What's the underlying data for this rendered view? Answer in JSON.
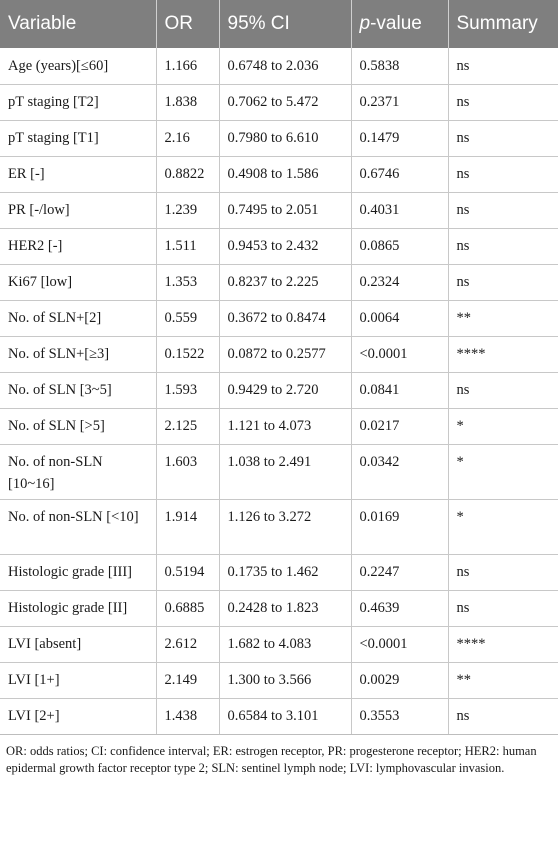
{
  "table": {
    "headers": {
      "variable": "Variable",
      "or": "OR",
      "ci": "95% CI",
      "p_prefix": "p",
      "p_suffix": "-value",
      "summary": "Summary"
    },
    "rows": [
      {
        "variable": "Age (years)[≤60]",
        "or": "1.166",
        "ci": "0.6748 to 2.036",
        "p": "0.5838",
        "summary": "ns"
      },
      {
        "variable": "pT staging [T2]",
        "or": "1.838",
        "ci": "0.7062 to 5.472",
        "p": "0.2371",
        "summary": "ns"
      },
      {
        "variable": "pT staging [T1]",
        "or": "2.16",
        "ci": "0.7980 to 6.610",
        "p": "0.1479",
        "summary": "ns"
      },
      {
        "variable": "ER [-]",
        "or": "0.8822",
        "ci": "0.4908 to 1.586",
        "p": "0.6746",
        "summary": "ns"
      },
      {
        "variable": "PR [-/low]",
        "or": "1.239",
        "ci": "0.7495 to 2.051",
        "p": "0.4031",
        "summary": "ns"
      },
      {
        "variable": "HER2 [-]",
        "or": "1.511",
        "ci": "0.9453 to 2.432",
        "p": "0.0865",
        "summary": "ns"
      },
      {
        "variable": "Ki67 [low]",
        "or": "1.353",
        "ci": "0.8237 to 2.225",
        "p": "0.2324",
        "summary": "ns"
      },
      {
        "variable": "No. of SLN+[2]",
        "or": "0.559",
        "ci": "0.3672 to 0.8474",
        "p": "0.0064",
        "summary": "**"
      },
      {
        "variable": "No. of SLN+[≥3]",
        "or": "0.1522",
        "ci": "0.0872 to 0.2577",
        "p": "<0.0001",
        "summary": "****"
      },
      {
        "variable": "No. of SLN [3~5]",
        "or": "1.593",
        "ci": "0.9429 to 2.720",
        "p": "0.0841",
        "summary": "ns"
      },
      {
        "variable": "No. of SLN [>5]",
        "or": "2.125",
        "ci": "1.121 to 4.073",
        "p": "0.0217",
        "summary": "*"
      },
      {
        "variable": "No. of non-SLN [10~16]",
        "or": "1.603",
        "ci": "1.038 to 2.491",
        "p": "0.0342",
        "summary": "*"
      },
      {
        "variable": "No. of non-SLN [<10]",
        "or": "1.914",
        "ci": "1.126 to 3.272",
        "p": "0.0169",
        "summary": "*"
      },
      {
        "variable": "Histologic grade [III]",
        "or": "0.5194",
        "ci": "0.1735 to 1.462",
        "p": "0.2247",
        "summary": "ns"
      },
      {
        "variable": "Histologic grade [II]",
        "or": "0.6885",
        "ci": "0.2428 to 1.823",
        "p": "0.4639",
        "summary": "ns"
      },
      {
        "variable": "LVI [absent]",
        "or": "2.612",
        "ci": "1.682 to 4.083",
        "p": "<0.0001",
        "summary": "****"
      },
      {
        "variable": "LVI [1+]",
        "or": "2.149",
        "ci": "1.300 to 3.566",
        "p": "0.0029",
        "summary": "**"
      },
      {
        "variable": "LVI [2+]",
        "or": "1.438",
        "ci": "0.6584 to 3.101",
        "p": "0.3553",
        "summary": "ns"
      }
    ]
  },
  "footnote": "OR: odds ratios; CI: confidence interval; ER: estrogen receptor, PR: progesterone receptor; HER2: human epidermal growth factor receptor type 2; SLN: sentinel lymph node; LVI: lymphovascular invasion."
}
